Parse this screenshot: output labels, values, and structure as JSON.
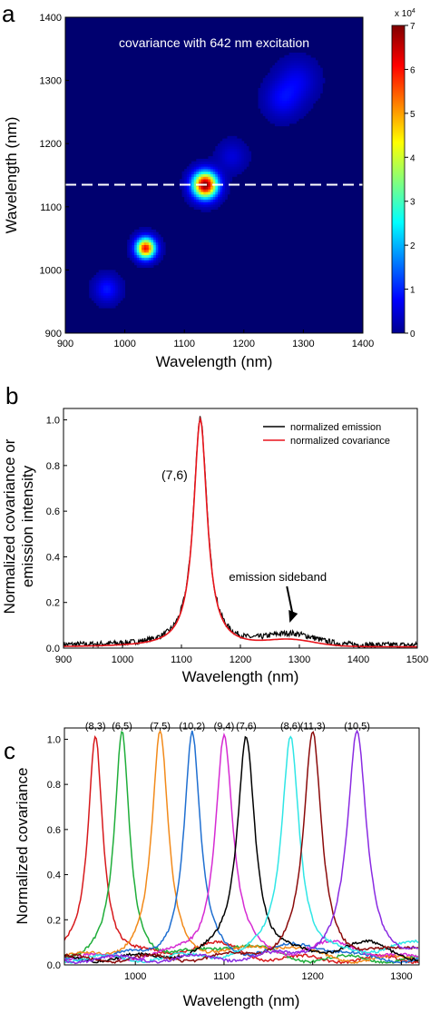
{
  "chart_data": [
    {
      "panel": "a",
      "type": "heatmap",
      "annotation": "covariance with 642 nm excitation",
      "xlabel": "Wavelength (nm)",
      "ylabel": "Wavelength (nm)",
      "xlim": [
        900,
        1400
      ],
      "ylim": [
        900,
        1400
      ],
      "xticks": [
        900,
        1000,
        1100,
        1200,
        1300,
        1400
      ],
      "yticks": [
        900,
        1000,
        1100,
        1200,
        1300,
        1400
      ],
      "colorbar": {
        "min": 0,
        "max": 7,
        "ticks": [
          0,
          1,
          2,
          3,
          4,
          5,
          6,
          7
        ],
        "multiplier": "x 10",
        "exponent": "4"
      },
      "dashed_line_y": 1135,
      "peaks": [
        {
          "x": 1135,
          "y": 1135,
          "amplitude": 7.0,
          "width": 14
        },
        {
          "x": 1035,
          "y": 1035,
          "amplitude": 6.0,
          "width": 11
        },
        {
          "x": 970,
          "y": 970,
          "amplitude": 0.9,
          "width": 14
        },
        {
          "x": 1265,
          "y": 1270,
          "amplitude": 0.7,
          "width": 20
        },
        {
          "x": 1290,
          "y": 1300,
          "amplitude": 0.6,
          "width": 22
        },
        {
          "x": 1180,
          "y": 1180,
          "amplitude": 0.5,
          "width": 16
        }
      ]
    },
    {
      "panel": "b",
      "type": "line",
      "xlabel": "Wavelength",
      "xunit": "(nm)",
      "ylabel_lines": [
        "Normalized covariance or",
        "emission intensity"
      ],
      "xlim": [
        900,
        1500
      ],
      "ylim": [
        0,
        1.05
      ],
      "xticks": [
        900,
        1000,
        1100,
        1200,
        1300,
        1400,
        1500
      ],
      "yticks": [
        "0.0",
        "0.2",
        "0.4",
        "0.6",
        "0.8",
        "1.0"
      ],
      "peak_label": "(7,6)",
      "peak_center": 1132,
      "annotation": "emission sideband",
      "sideband_center": 1285,
      "series": [
        {
          "name": "normalized emission",
          "color": "#000000"
        },
        {
          "name": "normalized covariance",
          "color": "#e8141b"
        }
      ]
    },
    {
      "panel": "c",
      "type": "line",
      "xlabel": "Wavelength (nm)",
      "ylabel": "Normalized covariance",
      "xlim": [
        920,
        1320
      ],
      "ylim": [
        0,
        1.05
      ],
      "xticks": [
        1000,
        1100,
        1200,
        1300
      ],
      "yticks": [
        "0.0",
        "0.2",
        "0.4",
        "0.6",
        "0.8",
        "1.0"
      ],
      "series": [
        {
          "name": "(8,3)",
          "center": 955,
          "width": 10,
          "color": "#d7191c"
        },
        {
          "name": "(6,5)",
          "center": 985,
          "width": 10,
          "color": "#1fae3a"
        },
        {
          "name": "(7,5)",
          "center": 1028,
          "width": 11,
          "color": "#f28a1a"
        },
        {
          "name": "(10,2)",
          "center": 1064,
          "width": 11,
          "color": "#1f6fd1"
        },
        {
          "name": "(9,4)",
          "center": 1100,
          "width": 12,
          "color": "#d62bd3"
        },
        {
          "name": "(7,6)",
          "center": 1125,
          "width": 12,
          "color": "#000000"
        },
        {
          "name": "(8,6)",
          "center": 1175,
          "width": 12,
          "color": "#2fe6e6"
        },
        {
          "name": "(11,3)",
          "center": 1200,
          "width": 12,
          "color": "#8b0a0a"
        },
        {
          "name": "(10,5)",
          "center": 1250,
          "width": 13,
          "color": "#8a2be2"
        }
      ]
    }
  ]
}
